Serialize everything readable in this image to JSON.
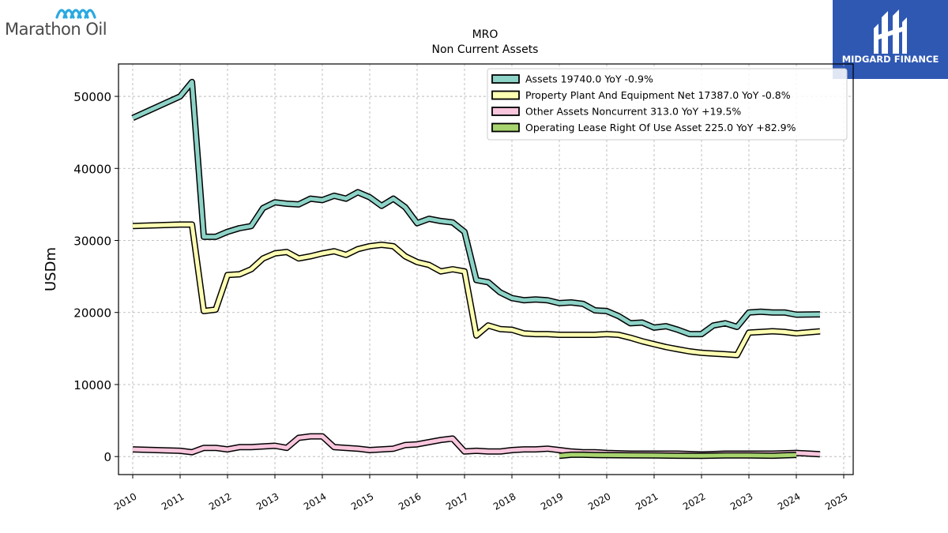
{
  "logos": {
    "left_brand": "Marathon Oil",
    "right_brand": "MIDGARD FINANCE"
  },
  "chart_data": {
    "type": "line",
    "title": "MRO",
    "subtitle": "Non Current  Assets",
    "xlabel": "",
    "ylabel": "USDm",
    "xlim": [
      2009.7,
      2025.2
    ],
    "ylim": [
      -2500,
      54500
    ],
    "x_ticks": [
      "2010",
      "2011",
      "2012",
      "2013",
      "2014",
      "2015",
      "2016",
      "2017",
      "2018",
      "2019",
      "2020",
      "2021",
      "2022",
      "2023",
      "2024",
      "2025"
    ],
    "y_ticks": [
      0,
      10000,
      20000,
      30000,
      40000,
      50000
    ],
    "y_tick_labels": [
      "0",
      "10000",
      "20000",
      "30000",
      "40000",
      "50000"
    ],
    "grid": true,
    "legend_position": "top-right",
    "colors": {
      "assets": "#8dd3c7",
      "ppe": "#ffffb3",
      "other": "#f9c6dd",
      "lease": "#a8d46f",
      "outline": "#000000"
    },
    "series": [
      {
        "key": "assets",
        "name": "Assets",
        "legend": "Assets  19740.0 YoY -0.9%",
        "x": [
          2010.0,
          2011.0,
          2011.25,
          2011.5,
          2011.75,
          2012.0,
          2012.25,
          2012.5,
          2012.75,
          2013.0,
          2013.25,
          2013.5,
          2013.75,
          2014.0,
          2014.25,
          2014.5,
          2014.75,
          2015.0,
          2015.25,
          2015.5,
          2015.75,
          2016.0,
          2016.25,
          2016.5,
          2016.75,
          2017.0,
          2017.25,
          2017.5,
          2017.75,
          2018.0,
          2018.25,
          2018.5,
          2018.75,
          2019.0,
          2019.25,
          2019.5,
          2019.75,
          2020.0,
          2020.25,
          2020.5,
          2020.75,
          2021.0,
          2021.25,
          2021.5,
          2021.75,
          2022.0,
          2022.25,
          2022.5,
          2022.75,
          2023.0,
          2023.25,
          2023.5,
          2023.75,
          2024.0,
          2024.5
        ],
        "values": [
          47000,
          50000,
          52000,
          30500,
          30500,
          31200,
          31700,
          32000,
          34500,
          35300,
          35100,
          35000,
          35800,
          35600,
          36200,
          35800,
          36700,
          36000,
          34800,
          35800,
          34600,
          32400,
          33000,
          32700,
          32500,
          31200,
          24500,
          24200,
          22800,
          22000,
          21700,
          21800,
          21700,
          21300,
          21400,
          21200,
          20300,
          20200,
          19500,
          18500,
          18600,
          17900,
          18100,
          17600,
          17000,
          17000,
          18200,
          18500,
          18000,
          20000,
          20100,
          20000,
          20000,
          19700,
          19740
        ]
      },
      {
        "key": "ppe",
        "name": "Property Plant And Equipment Net",
        "legend": "Property Plant And Equipment Net  17387.0 YoY -0.8%",
        "x": [
          2010.0,
          2011.0,
          2011.25,
          2011.5,
          2011.75,
          2012.0,
          2012.25,
          2012.5,
          2012.75,
          2013.0,
          2013.25,
          2013.5,
          2013.75,
          2014.0,
          2014.25,
          2014.5,
          2014.75,
          2015.0,
          2015.25,
          2015.5,
          2015.75,
          2016.0,
          2016.25,
          2016.5,
          2016.75,
          2017.0,
          2017.25,
          2017.5,
          2017.75,
          2018.0,
          2018.25,
          2018.5,
          2018.75,
          2019.0,
          2019.25,
          2019.5,
          2019.75,
          2020.0,
          2020.25,
          2020.5,
          2020.75,
          2021.0,
          2021.25,
          2021.5,
          2021.75,
          2022.0,
          2022.25,
          2022.5,
          2022.75,
          2023.0,
          2023.25,
          2023.5,
          2023.75,
          2024.0,
          2024.5
        ],
        "values": [
          32000,
          32200,
          32200,
          20200,
          20400,
          25200,
          25300,
          26000,
          27500,
          28200,
          28400,
          27500,
          27800,
          28200,
          28500,
          28000,
          28800,
          29200,
          29400,
          29200,
          27800,
          27000,
          26600,
          25700,
          26000,
          25700,
          16800,
          18200,
          17700,
          17600,
          17100,
          17000,
          17000,
          16900,
          16900,
          16900,
          16900,
          17000,
          16900,
          16500,
          16000,
          15600,
          15200,
          14900,
          14600,
          14400,
          14300,
          14200,
          14100,
          17200,
          17300,
          17400,
          17300,
          17100,
          17387
        ]
      },
      {
        "key": "other",
        "name": "Other Assets Noncurrent",
        "legend": "Other Assets Noncurrent  313.0 YoY +19.5%",
        "x": [
          2010.0,
          2011.0,
          2011.25,
          2011.5,
          2011.75,
          2012.0,
          2012.25,
          2012.5,
          2012.75,
          2013.0,
          2013.25,
          2013.5,
          2013.75,
          2014.0,
          2014.25,
          2014.5,
          2014.75,
          2015.0,
          2015.25,
          2015.5,
          2015.75,
          2016.0,
          2016.25,
          2016.5,
          2016.75,
          2017.0,
          2017.25,
          2017.5,
          2017.75,
          2018.0,
          2018.25,
          2018.5,
          2018.75,
          2019.0,
          2019.25,
          2019.5,
          2019.75,
          2020.0,
          2020.5,
          2021.0,
          2021.5,
          2022.0,
          2022.5,
          2023.0,
          2023.5,
          2024.0,
          2024.5
        ],
        "values": [
          1000,
          800,
          600,
          1200,
          1200,
          1000,
          1300,
          1300,
          1400,
          1500,
          1200,
          2600,
          2800,
          2800,
          1300,
          1200,
          1100,
          900,
          1000,
          1100,
          1600,
          1700,
          2000,
          2300,
          2500,
          700,
          800,
          700,
          700,
          900,
          1000,
          1000,
          1100,
          900,
          700,
          600,
          600,
          500,
          400,
          400,
          400,
          300,
          400,
          400,
          400,
          500,
          313
        ]
      },
      {
        "key": "lease",
        "name": "Operating Lease Right Of Use Asset",
        "legend": "Operating Lease Right Of Use Asset  225.0 YoY +82.9%",
        "x": [
          2019.0,
          2019.25,
          2019.5,
          2019.75,
          2020.0,
          2020.5,
          2021.0,
          2021.5,
          2022.0,
          2022.5,
          2023.0,
          2023.5,
          2024.0
        ],
        "values": [
          100,
          250,
          250,
          220,
          200,
          180,
          150,
          120,
          100,
          150,
          150,
          120,
          225
        ]
      }
    ]
  }
}
